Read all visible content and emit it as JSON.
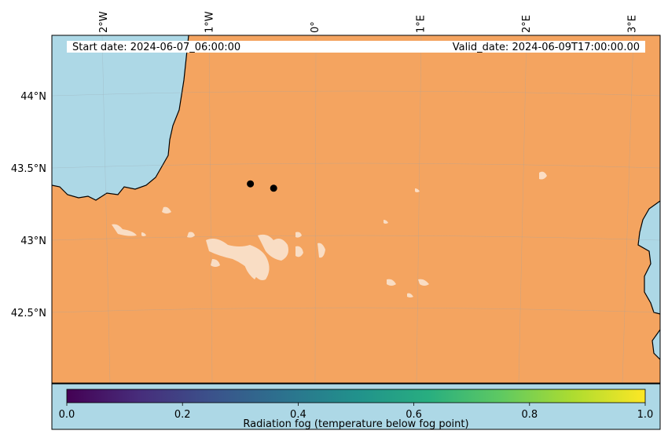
{
  "map": {
    "start_date": "Start date: 2024-06-07_06:00:00",
    "valid_date": "Valid_date: 2024-06-09T17:00:00.00",
    "lon_ticks": [
      {
        "label": "2°W",
        "value": -2
      },
      {
        "label": "1°W",
        "value": -1
      },
      {
        "label": "0°",
        "value": 0
      },
      {
        "label": "1°E",
        "value": 1
      },
      {
        "label": "2°E",
        "value": 2
      },
      {
        "label": "3°E",
        "value": 3
      }
    ],
    "lat_ticks": [
      {
        "label": "44°N",
        "value": 44
      },
      {
        "label": "43.5°N",
        "value": 43.5
      },
      {
        "label": "43°N",
        "value": 43
      },
      {
        "label": "42.5°N",
        "value": 42.5
      }
    ],
    "points": [
      {
        "lon": -0.62,
        "lat": 43.39
      },
      {
        "lon": -0.4,
        "lat": 43.36
      }
    ],
    "colors": {
      "ocean": "#add8e6",
      "land": "#f4a460",
      "coast": "#000000",
      "point": "#000000"
    }
  },
  "colorbar": {
    "title": "Radiation fog (temperature below fog point)",
    "colormap": "viridis",
    "ticks": [
      {
        "label": "0.0",
        "value": 0.0
      },
      {
        "label": "0.2",
        "value": 0.2
      },
      {
        "label": "0.4",
        "value": 0.4
      },
      {
        "label": "0.6",
        "value": 0.6
      },
      {
        "label": "0.8",
        "value": 0.8
      },
      {
        "label": "1.0",
        "value": 1.0
      }
    ]
  }
}
